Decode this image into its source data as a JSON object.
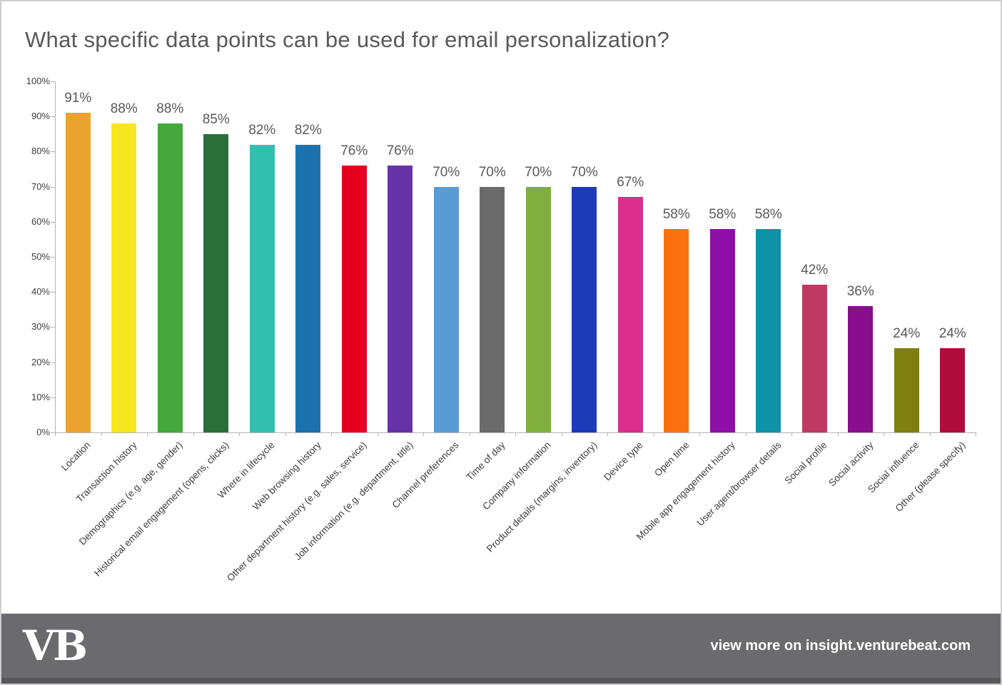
{
  "title": "What specific data points can be used for email personalization?",
  "chart_data": {
    "type": "bar",
    "title": "What specific data points can be used for email personalization?",
    "categories": [
      "Location",
      "Transaction history",
      "Demographics (e.g. age, gender)",
      "Historical email engagement (opens, clicks)",
      "Where in lifecycle",
      "Web browsing history",
      "Other department history (e.g. sales, service)",
      "Job information (e.g. department, title)",
      "Channel preferences",
      "Time of day",
      "Company information",
      "Product details (margins, inventory)",
      "Device type",
      "Open time",
      "Mobile app engagement history",
      "User agent/browser details",
      "Social profile",
      "Social activity",
      "Social influence",
      "Other (please specify)"
    ],
    "values": [
      91,
      88,
      88,
      85,
      82,
      82,
      76,
      76,
      70,
      70,
      70,
      70,
      67,
      58,
      58,
      58,
      42,
      36,
      24,
      24
    ],
    "value_labels": [
      "91%",
      "88%",
      "88%",
      "85%",
      "82%",
      "82%",
      "76%",
      "76%",
      "70%",
      "70%",
      "70%",
      "70%",
      "67%",
      "58%",
      "58%",
      "58%",
      "42%",
      "36%",
      "24%",
      "24%"
    ],
    "bar_colors": [
      "#EBA42F",
      "#F7E71E",
      "#44A83D",
      "#2A6E3A",
      "#32BFAE",
      "#1C72AC",
      "#E4001F",
      "#6632A8",
      "#5B9BD5",
      "#6B6B6B",
      "#7FAF3D",
      "#1D3BB8",
      "#DC2E8C",
      "#F9720F",
      "#8E0FA8",
      "#0E93A8",
      "#BE3A63",
      "#870E8C",
      "#7F7F10",
      "#AF0E3C"
    ],
    "xlabel": "",
    "ylabel": "",
    "ylim": [
      0,
      100
    ],
    "ytick_labels": [
      "0%",
      "10%",
      "20%",
      "30%",
      "40%",
      "50%",
      "60%",
      "70%",
      "80%",
      "90%",
      "100%"
    ],
    "grid": false,
    "legend": false
  },
  "footer": {
    "logo": "VB",
    "text": "view more on insight.venturebeat.com"
  },
  "colors": {
    "title_text": "#595959",
    "axis_line": "#b3b3b3",
    "value_label": "#595959",
    "category_label": "#3d3d3d",
    "footer_bg": "#6B6A6F",
    "footer_strip": "#58575C",
    "footer_text": "#FFFFFF",
    "page_border": "#CFCFCF",
    "background": "#FFFFFF"
  }
}
